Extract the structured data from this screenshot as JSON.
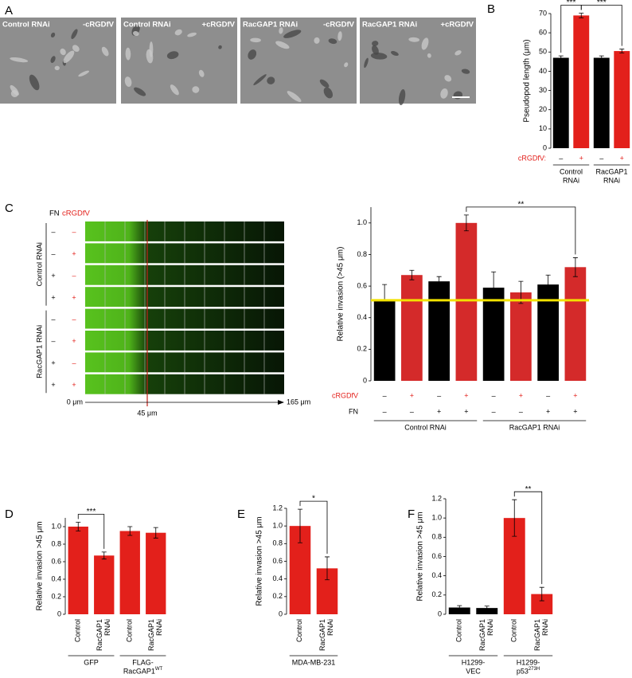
{
  "panel_letters": [
    "A",
    "B",
    "C",
    "D",
    "E",
    "F"
  ],
  "panel_a": {
    "images": [
      {
        "left": "Control RNAi",
        "right": "-cRGDfV"
      },
      {
        "left": "Control RNAi",
        "right": "+cRGDfV"
      },
      {
        "left": "RacGAP1 RNAi",
        "right": "-cRGDfV"
      },
      {
        "left": "RacGAP1 RNAi",
        "right": "+cRGDfV"
      }
    ]
  },
  "panel_c_image": {
    "column_labels": [
      "FN",
      "cRGDfV"
    ],
    "column_colors": [
      "#000000",
      "#e3201b"
    ],
    "rows": [
      [
        "–",
        "–"
      ],
      [
        "–",
        "+"
      ],
      [
        "+",
        "–"
      ],
      [
        "+",
        "+"
      ],
      [
        "–",
        "–"
      ],
      [
        "–",
        "+"
      ],
      [
        "+",
        "–"
      ],
      [
        "+",
        "+"
      ]
    ],
    "groups": [
      "Control RNAi",
      "RacGAP1 RNAi"
    ],
    "axis_labels": [
      "0 μm",
      "45 μm",
      "165 μm"
    ]
  },
  "chart_data": [
    {
      "type": "bar",
      "y_label": "Pseudopod length (μm)",
      "values": [
        47,
        69,
        47,
        50.5
      ],
      "errors": [
        1,
        1.2,
        1,
        1
      ],
      "colors": [
        "#000000",
        "#e3201b",
        "#000000",
        "#e3201b"
      ],
      "ylim": [
        0,
        70
      ],
      "yticks": [
        0,
        10,
        20,
        30,
        40,
        50,
        60,
        70
      ],
      "condition_rows": [
        {
          "name": "cRGDfV:",
          "color": "#e3201b",
          "marks": [
            "–",
            "+",
            "–",
            "+"
          ],
          "mark_colors": [
            "#000000",
            "#e3201b",
            "#000000",
            "#e3201b"
          ]
        }
      ],
      "groups": [
        {
          "lines": [
            "Control",
            "RNAi"
          ]
        },
        {
          "lines": [
            "RacGAP1",
            "RNAi"
          ]
        }
      ],
      "significance": [
        {
          "label": "***",
          "between": [
            0,
            1
          ]
        },
        {
          "label": "***",
          "between": [
            1,
            3
          ]
        }
      ]
    },
    {
      "type": "bar",
      "y_label": "Relative invasion (>45 μm)",
      "values": [
        0.51,
        0.67,
        0.63,
        1.0,
        0.59,
        0.56,
        0.61,
        0.72
      ],
      "errors": [
        0.1,
        0.03,
        0.03,
        0.05,
        0.1,
        0.07,
        0.06,
        0.06
      ],
      "colors": [
        "#000000",
        "#d42a2a",
        "#000000",
        "#d42a2a",
        "#000000",
        "#d42a2a",
        "#000000",
        "#d42a2a"
      ],
      "ylim": [
        0,
        1.1
      ],
      "yticks": [
        0,
        0.2,
        0.4,
        0.6,
        0.8,
        {
          "value": 1,
          "label": "1.0"
        }
      ],
      "reference_line": {
        "value": 0.51,
        "color": "#f2e200"
      },
      "condition_rows": [
        {
          "name": "cRGDfV",
          "color": "#e3201b",
          "marks": [
            "–",
            "+",
            "–",
            "+",
            "–",
            "+",
            "–",
            "+"
          ],
          "mark_colors": [
            "#000000",
            "#e3201b",
            "#000000",
            "#e3201b",
            "#000000",
            "#e3201b",
            "#000000",
            "#e3201b"
          ]
        },
        {
          "name": "FN",
          "color": "#000000",
          "marks": [
            "–",
            "–",
            "+",
            "+",
            "–",
            "–",
            "+",
            "+"
          ]
        }
      ],
      "groups": [
        {
          "lines": [
            "Control RNAi"
          ]
        },
        {
          "lines": [
            "RacGAP1 RNAi"
          ]
        }
      ],
      "significance": [
        {
          "label": "**",
          "between": [
            3,
            7
          ]
        }
      ]
    },
    {
      "type": "bar",
      "y_label": "Relative invasion >45 μm",
      "categories": [
        "Control",
        "RacGAP1 RNAi",
        "Control",
        "RacGAP1 RNAi"
      ],
      "values": [
        1.0,
        0.67,
        0.95,
        0.93
      ],
      "errors": [
        0.05,
        0.04,
        0.05,
        0.06
      ],
      "colors": [
        "#e3201b",
        "#e3201b",
        "#e3201b",
        "#e3201b"
      ],
      "ylim": [
        0,
        1.1
      ],
      "yticks": [
        0,
        0.2,
        0.4,
        0.6,
        0.8,
        {
          "value": 1,
          "label": "1.0"
        }
      ],
      "groups": [
        {
          "lines": [
            "GFP"
          ]
        },
        {
          "lines": [
            "FLAG-",
            "RacGAP1"
          ],
          "sup": "WT"
        }
      ],
      "significance": [
        {
          "label": "***",
          "between": [
            0,
            1
          ]
        }
      ]
    },
    {
      "type": "bar",
      "y_label": "Relative invasion >45 μm",
      "categories": [
        "Control",
        "RacGAP1 RNAi"
      ],
      "values": [
        1.0,
        0.52
      ],
      "errors": [
        0.19,
        0.13
      ],
      "colors": [
        "#e3201b",
        "#e3201b"
      ],
      "ylim": [
        0,
        1.2
      ],
      "yticks": [
        0,
        0.2,
        0.4,
        0.6,
        0.8,
        {
          "value": 1,
          "label": "1.0"
        },
        1.2
      ],
      "groups": [
        {
          "lines": [
            "MDA-MB-231"
          ]
        }
      ],
      "significance": [
        {
          "label": "*",
          "between": [
            0,
            1
          ]
        }
      ]
    },
    {
      "type": "bar",
      "y_label": "Relative invasion >45 μm",
      "categories": [
        "Control",
        "RacGAP1 RNAi",
        "Control",
        "RacGAP1 RNAi"
      ],
      "values": [
        0.07,
        0.065,
        1.0,
        0.21
      ],
      "errors": [
        0.02,
        0.02,
        0.19,
        0.07
      ],
      "colors": [
        "#000000",
        "#000000",
        "#e3201b",
        "#e3201b"
      ],
      "ylim": [
        0,
        1.2
      ],
      "yticks": [
        0,
        0.2,
        0.4,
        0.6,
        0.8,
        {
          "value": 1,
          "label": "1.0"
        },
        1.2
      ],
      "groups": [
        {
          "lines": [
            "H1299-",
            "VEC"
          ]
        },
        {
          "lines": [
            "H1299-",
            "p53"
          ],
          "sup": "273H"
        }
      ],
      "significance": [
        {
          "label": "**",
          "between": [
            2,
            3
          ]
        }
      ]
    }
  ]
}
